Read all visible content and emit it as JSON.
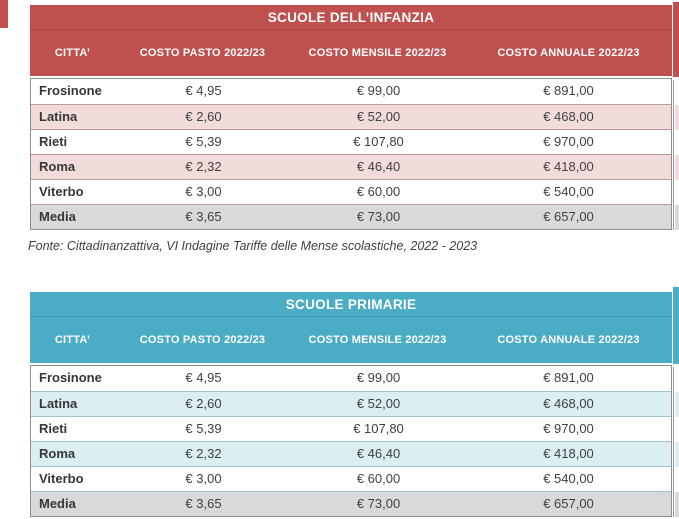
{
  "tables": [
    {
      "title": "SCUOLE DELL’INFANZIA",
      "columns": [
        "CITTA’",
        "COSTO PASTO 2022/23",
        "COSTO MENSILE 2022/23",
        "COSTO ANNUALE 2022/23"
      ],
      "rows": [
        [
          "Frosinone",
          "€ 4,95",
          "€ 99,00",
          "€ 891,00"
        ],
        [
          "Latina",
          "€ 2,60",
          "€ 52,00",
          "€ 468,00"
        ],
        [
          "Rieti",
          "€ 5,39",
          "€ 107,80",
          "€ 970,00"
        ],
        [
          "Roma",
          "€ 2,32",
          "€ 46,40",
          "€ 418,00"
        ],
        [
          "Viterbo",
          "€ 3,00",
          "€ 60,00",
          "€ 540,00"
        ],
        [
          "Media",
          "€ 3,65",
          "€ 73,00",
          "€ 657,00"
        ]
      ],
      "caption": "Fonte: Cittadinanzattiva, VI Indagine Tariffe delle Mense scolastiche, 2022 - 2023",
      "theme": {
        "header_bg": "#C0504D",
        "stripe_bg": "#F2DCDB",
        "summary_row_bg": "#D9D9D9",
        "header_text": "#FFFFFF"
      }
    },
    {
      "title": "SCUOLE PRIMARIE",
      "columns": [
        "CITTA’",
        "COSTO PASTO 2022/23",
        "COSTO MENSILE 2022/23",
        "COSTO ANNUALE 2022/23"
      ],
      "rows": [
        [
          "Frosinone",
          "€ 4,95",
          "€ 99,00",
          "€ 891,00"
        ],
        [
          "Latina",
          "€ 2,60",
          "€ 52,00",
          "€ 468,00"
        ],
        [
          "Rieti",
          "€ 5,39",
          "€ 107,80",
          "€ 970,00"
        ],
        [
          "Roma",
          "€ 2,32",
          "€ 46,40",
          "€ 418,00"
        ],
        [
          "Viterbo",
          "€ 3,00",
          "€ 60,00",
          "€ 540,00"
        ],
        [
          "Media",
          "€ 3,65",
          "€ 73,00",
          "€ 657,00"
        ]
      ],
      "theme": {
        "header_bg": "#4BACC6",
        "stripe_bg": "#DAEEF3",
        "summary_row_bg": "#D9D9D9",
        "header_text": "#FFFFFF"
      }
    }
  ]
}
